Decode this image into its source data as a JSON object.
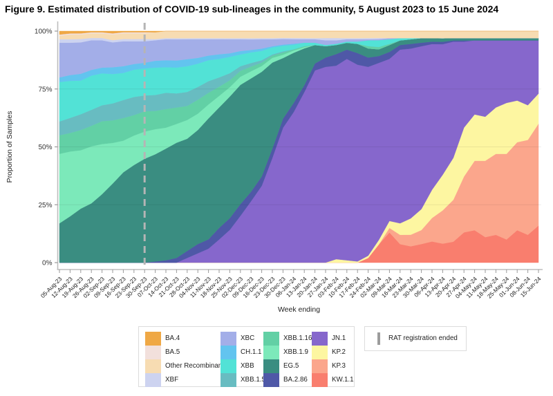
{
  "title": "Figure 9. Estimated distribution of COVID-19 sub-lineages in the community, 5 August 2023 to 15 June 2024",
  "y_axis": {
    "label": "Proportion of Samples",
    "ticks": [
      "0%",
      "25%",
      "50%",
      "75%",
      "100%"
    ]
  },
  "x_axis": {
    "label": "Week ending"
  },
  "rat_annotation": {
    "label": "RAT registration ended",
    "week": "30-Sep-23",
    "line_color": "#b5b5b5"
  },
  "legend": {
    "columns": [
      [
        0,
        1,
        2,
        3
      ],
      [
        4,
        5,
        6,
        7
      ],
      [
        8,
        9,
        10,
        11
      ],
      [
        12,
        13,
        14,
        15
      ]
    ]
  },
  "chart_data": {
    "type": "area",
    "stacked": true,
    "title": "Figure 9. Estimated distribution of COVID-19 sub-lineages in the community, 5 August 2023 to 15 June 2024",
    "xlabel": "Week ending",
    "ylabel": "Proportion of Samples",
    "ylim": [
      0,
      100
    ],
    "y_tick_values": [
      0,
      25,
      50,
      75,
      100
    ],
    "grid": "faint horizontal at 25/50/75",
    "legend_position": "bottom",
    "vline_category": "30-Sep-23",
    "categories": [
      "05-Aug-23",
      "12-Aug-23",
      "19-Aug-23",
      "26-Aug-23",
      "02-Sep-23",
      "09-Sep-23",
      "16-Sep-23",
      "23-Sep-23",
      "30-Sep-23",
      "07-Oct-23",
      "14-Oct-23",
      "21-Oct-23",
      "28-Oct-23",
      "04-Nov-23",
      "11-Nov-23",
      "18-Nov-23",
      "25-Nov-23",
      "02-Dec-23",
      "09-Dec-23",
      "16-Dec-23",
      "23-Dec-23",
      "30-Dec-23",
      "06-Jan-24",
      "13-Jan-24",
      "20-Jan-24",
      "27-Jan-24",
      "03-Feb-24",
      "10-Feb-24",
      "17-Feb-24",
      "24-Feb-24",
      "02-Mar-24",
      "09-Mar-24",
      "16-Mar-24",
      "23-Mar-24",
      "30-Mar-24",
      "06-Apr-24",
      "13-Apr-24",
      "20-Apr-24",
      "27-Apr-24",
      "04-May-24",
      "11-May-24",
      "18-May-24",
      "25-May-24",
      "01-Jun-24",
      "08-Jun-24",
      "15-Jun-24"
    ],
    "units": "percent of samples; stack order top-to-bottom follows series order",
    "series": [
      {
        "name": "BA.4",
        "color": "#efa845",
        "values": [
          1.5,
          1,
          1,
          0.5,
          0.5,
          1,
          0.5,
          0.5,
          0.5,
          0.5,
          0,
          0,
          0,
          0,
          0,
          0,
          0,
          0,
          0,
          0,
          0,
          0,
          0,
          0,
          0,
          0,
          0,
          0,
          0,
          0,
          0,
          0,
          0,
          0,
          0,
          0,
          0,
          0,
          0,
          0,
          0,
          0,
          0,
          0,
          0,
          0
        ]
      },
      {
        "name": "BA.5",
        "color": "#f2e0dc",
        "values": [
          0.5,
          0.5,
          0.5,
          0.5,
          0.5,
          0.5,
          0.5,
          0.5,
          0.5,
          0,
          0,
          0,
          0,
          0,
          0,
          0,
          0,
          0,
          0,
          0,
          0,
          0,
          0,
          0,
          0,
          0,
          0,
          0,
          0,
          0,
          0,
          0,
          0,
          0,
          0,
          0,
          0,
          0,
          0,
          0,
          0,
          0,
          0,
          0,
          0,
          0
        ]
      },
      {
        "name": "Other Recombinant",
        "color": "#f7dcb2",
        "values": [
          1.5,
          2,
          2,
          2,
          2,
          2.5,
          2.5,
          2.5,
          2.5,
          3,
          3,
          3,
          3,
          3,
          3,
          3,
          3,
          3,
          3,
          3,
          3,
          3,
          3,
          3,
          3,
          3,
          3,
          3,
          3,
          3,
          3,
          3,
          3,
          3,
          3,
          3,
          3,
          3,
          3,
          3,
          3,
          3,
          3,
          3,
          3,
          3
        ]
      },
      {
        "name": "XBF",
        "color": "#cdd3f0",
        "values": [
          1.5,
          1.5,
          1.5,
          1,
          1,
          1,
          1,
          1,
          1,
          0.5,
          0.5,
          0.5,
          0.5,
          0.5,
          0.5,
          0.5,
          0.5,
          0.5,
          0.5,
          0.5,
          0.5,
          0.5,
          0.5,
          0.5,
          0.5,
          1,
          1,
          0.5,
          0.5,
          0.5,
          0.5,
          0,
          0,
          0,
          0,
          0,
          0,
          0,
          0,
          0,
          0,
          0,
          0,
          0,
          0,
          0
        ]
      },
      {
        "name": "XBC",
        "color": "#a3aee8",
        "values": [
          15,
          14,
          14,
          13,
          12,
          11,
          11,
          10,
          9.5,
          9,
          9,
          9,
          8.5,
          8,
          7,
          6.5,
          6,
          5,
          4.5,
          4,
          3,
          2.5,
          2,
          1.5,
          1.5,
          2,
          1.5,
          1,
          1,
          0.5,
          0.5,
          0.5,
          0,
          0,
          0,
          0,
          0,
          0,
          0,
          0,
          0,
          0,
          0,
          0,
          0,
          0
        ]
      },
      {
        "name": "CH.1.1",
        "color": "#62c4ef",
        "values": [
          2,
          2.5,
          3,
          2.5,
          2.5,
          3,
          3,
          2.5,
          2.5,
          3,
          3,
          3,
          3,
          2.5,
          2,
          2,
          1.5,
          1.5,
          1,
          1,
          0.5,
          0.5,
          0.5,
          0,
          0,
          0,
          0,
          0,
          0,
          0,
          0,
          0,
          0,
          0,
          0,
          0,
          0,
          0,
          0,
          0,
          0,
          0,
          0,
          0,
          0,
          0
        ]
      },
      {
        "name": "XBB",
        "color": "#52e2d6",
        "values": [
          17,
          16,
          15,
          15,
          14,
          13,
          12,
          12,
          12,
          12,
          11,
          11,
          11,
          10,
          9,
          8,
          7,
          5,
          4.5,
          4,
          3,
          2.5,
          2,
          1.5,
          1,
          0.5,
          0.5,
          0.5,
          1,
          2.5,
          3,
          2,
          1,
          0.5,
          0,
          0,
          0,
          0,
          0,
          0,
          0,
          0,
          0,
          0,
          0,
          0
        ]
      },
      {
        "name": "XBB.1.5",
        "color": "#68bcc1",
        "values": [
          6,
          6.5,
          7,
          7,
          7,
          7.5,
          8,
          8,
          7,
          7,
          7,
          6,
          6,
          5.5,
          5,
          4,
          3,
          2,
          1.5,
          1,
          0.5,
          0.5,
          0,
          0,
          0,
          0,
          0,
          0,
          0,
          0,
          0,
          0,
          0,
          0,
          0,
          0,
          0,
          0,
          0,
          0,
          0,
          0,
          0,
          0,
          0,
          0
        ]
      },
      {
        "name": "XBB.1.16",
        "color": "#62d0a5",
        "values": [
          8,
          8,
          9,
          9,
          10,
          10,
          10,
          9,
          9,
          8,
          8,
          7,
          6,
          6,
          5,
          4,
          3,
          2.5,
          2,
          1.5,
          1,
          1,
          0.5,
          0.5,
          0,
          0,
          0,
          0,
          0,
          1,
          1,
          0.5,
          0,
          0,
          0,
          0,
          0,
          0,
          0,
          0,
          0,
          0,
          0,
          0,
          0,
          0
        ]
      },
      {
        "name": "XBB.1.9",
        "color": "#7ce9ba",
        "values": [
          30,
          28,
          26,
          25,
          22,
          18,
          14,
          13,
          12,
          11,
          9,
          8,
          8,
          7,
          6,
          5,
          4,
          3.5,
          3,
          2.5,
          2,
          1.5,
          1,
          0.5,
          0,
          0,
          0,
          0,
          0,
          0,
          0,
          0,
          0,
          0,
          0,
          0,
          0,
          0,
          0,
          0,
          0,
          0,
          0,
          0,
          0,
          0
        ]
      },
      {
        "name": "EG.5",
        "color": "#3a8d81",
        "values": [
          17,
          20,
          24,
          26,
          30,
          35,
          40,
          43,
          46,
          47,
          48,
          49,
          48,
          49,
          52,
          52,
          52,
          51,
          48,
          45,
          37,
          27,
          22,
          16,
          8,
          5,
          4,
          3,
          4,
          4,
          3,
          3,
          2,
          2,
          2,
          1.5,
          1.5,
          1,
          1,
          1,
          1,
          1,
          1,
          1,
          1,
          1
        ]
      },
      {
        "name": "BA.2.86",
        "color": "#4f58a7",
        "values": [
          0,
          0,
          0,
          0,
          0,
          0,
          0,
          0,
          0,
          0.5,
          1,
          2,
          3,
          4,
          4,
          5,
          5,
          5,
          4,
          4,
          4,
          4,
          4,
          3,
          3,
          4,
          5,
          4,
          5,
          4,
          3,
          3,
          2,
          2,
          1.5,
          1,
          1,
          0.5,
          0.5,
          0,
          0,
          0,
          0,
          0,
          0,
          0
        ]
      },
      {
        "name": "JN.1",
        "color": "#8667cc",
        "values": [
          0,
          0,
          0,
          0,
          0,
          0,
          0,
          0,
          0,
          0,
          0,
          0,
          2,
          4,
          6,
          10,
          14,
          20,
          26,
          33,
          45,
          60,
          66,
          74,
          83,
          85,
          84,
          87,
          85,
          82,
          78,
          70,
          75,
          73,
          70,
          62,
          55,
          50,
          37,
          32,
          33,
          29,
          27,
          26,
          28,
          23
        ]
      },
      {
        "name": "KP.2",
        "color": "#fdf6a1",
        "values": [
          0,
          0,
          0,
          0,
          0,
          0,
          0,
          0,
          0,
          0,
          0,
          0,
          0,
          0,
          0,
          0,
          0,
          0,
          0,
          0,
          0,
          0,
          0,
          0,
          0,
          0,
          1.5,
          1,
          0.5,
          1,
          2,
          3,
          5,
          7,
          9,
          12,
          15,
          18,
          21,
          20,
          19,
          20,
          22,
          18,
          15,
          13
        ]
      },
      {
        "name": "KP.3",
        "color": "#fba68c",
        "values": [
          0,
          0,
          0,
          0,
          0,
          0,
          0,
          0,
          0,
          0,
          0,
          0,
          0,
          0,
          0,
          0,
          0,
          0,
          0,
          0,
          0,
          0,
          0,
          0,
          0,
          0,
          0,
          0,
          0,
          0,
          0,
          2,
          4,
          5,
          6,
          10,
          14,
          18,
          24,
          30,
          33,
          35,
          37,
          38,
          41,
          44
        ]
      },
      {
        "name": "KW.1.1",
        "color": "#f97e6e",
        "values": [
          0,
          0,
          0,
          0,
          0,
          0,
          0,
          0,
          0,
          0,
          0,
          0,
          0,
          0,
          0,
          0,
          0,
          0,
          0,
          0,
          0,
          0,
          0,
          0,
          0,
          0,
          0,
          0,
          0,
          2,
          8,
          13,
          8,
          7,
          8,
          9,
          8,
          9,
          13,
          14,
          11,
          12,
          10,
          14,
          12,
          16
        ]
      }
    ]
  }
}
